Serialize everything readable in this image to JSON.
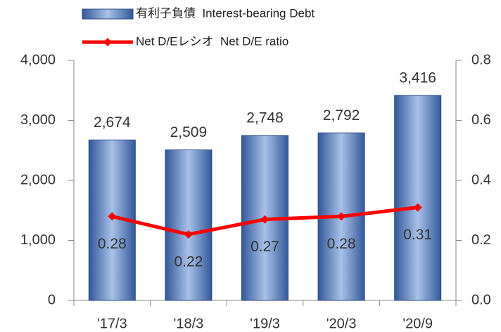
{
  "chart_data": {
    "type": "bar",
    "categories": [
      "'17/3",
      "'18/3",
      "'19/3",
      "'20/3",
      "'20/9"
    ],
    "series": [
      {
        "name": "有利子負債  Interest-bearing Debt",
        "type": "bar",
        "color": "#4a72b8",
        "axis": "y",
        "values": [
          2674,
          2509,
          2748,
          2792,
          3416
        ],
        "value_labels": [
          "2,674",
          "2,509",
          "2,748",
          "2,792",
          "3,416"
        ]
      },
      {
        "name": "Net D/Eレシオ  Net D/E ratio",
        "type": "line",
        "color": "#ff0000",
        "axis": "y2",
        "values": [
          0.28,
          0.22,
          0.27,
          0.28,
          0.31
        ]
      }
    ],
    "ylim": [
      0,
      4000
    ],
    "yticks": [
      0,
      {
        "value": 1000,
        "label": "1,000"
      },
      {
        "value": 2000,
        "label": "2,000"
      },
      {
        "value": 3000,
        "label": "3,000"
      },
      {
        "value": 4000,
        "label": "4,000"
      }
    ],
    "y2lim": [
      0,
      0.8
    ],
    "y2ticks": [
      {
        "value": 0,
        "label": "0.0"
      },
      0.2,
      0.4,
      0.6,
      0.8
    ],
    "legend": "top"
  }
}
